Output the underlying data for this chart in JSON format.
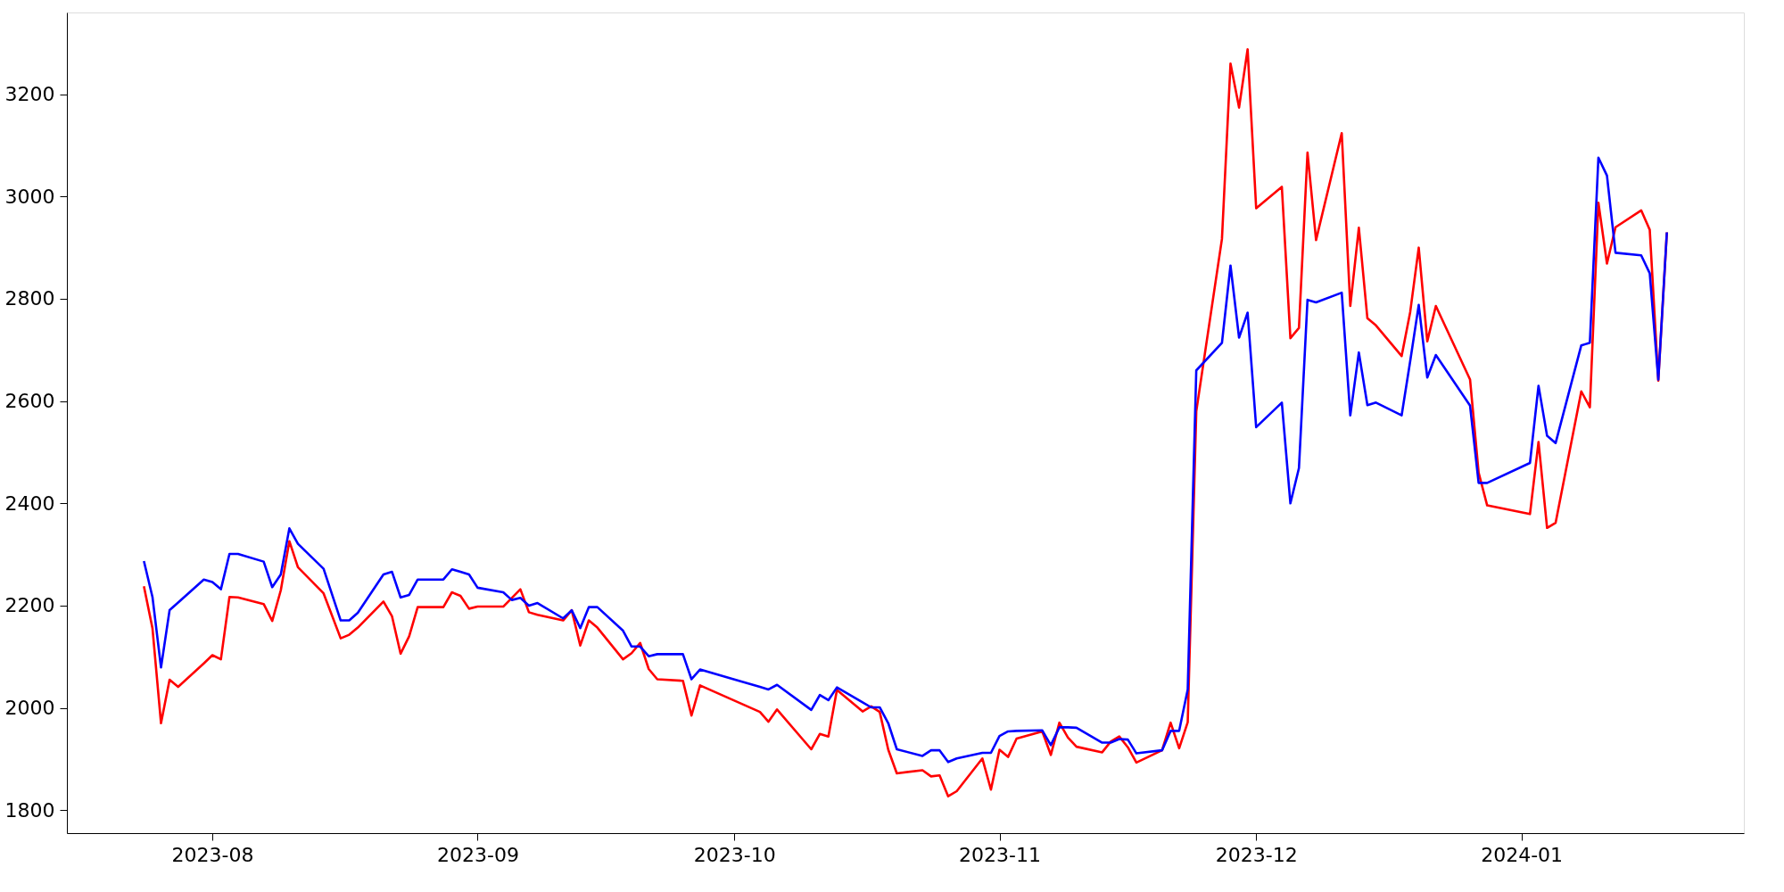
{
  "chart_data": {
    "type": "line",
    "x": [
      "2023-07-24",
      "2023-07-25",
      "2023-07-26",
      "2023-07-27",
      "2023-07-28",
      "2023-07-31",
      "2023-08-01",
      "2023-08-02",
      "2023-08-03",
      "2023-08-04",
      "2023-08-07",
      "2023-08-08",
      "2023-08-09",
      "2023-08-10",
      "2023-08-11",
      "2023-08-14",
      "2023-08-16",
      "2023-08-17",
      "2023-08-18",
      "2023-08-21",
      "2023-08-22",
      "2023-08-23",
      "2023-08-24",
      "2023-08-25",
      "2023-08-28",
      "2023-08-29",
      "2023-08-30",
      "2023-08-31",
      "2023-09-01",
      "2023-09-04",
      "2023-09-05",
      "2023-09-06",
      "2023-09-07",
      "2023-09-08",
      "2023-09-11",
      "2023-09-12",
      "2023-09-13",
      "2023-09-14",
      "2023-09-15",
      "2023-09-18",
      "2023-09-19",
      "2023-09-20",
      "2023-09-21",
      "2023-09-22",
      "2023-09-25",
      "2023-09-26",
      "2023-09-27",
      "2023-10-04",
      "2023-10-05",
      "2023-10-06",
      "2023-10-10",
      "2023-10-11",
      "2023-10-12",
      "2023-10-13",
      "2023-10-16",
      "2023-10-17",
      "2023-10-18",
      "2023-10-19",
      "2023-10-20",
      "2023-10-23",
      "2023-10-24",
      "2023-10-25",
      "2023-10-26",
      "2023-10-27",
      "2023-10-30",
      "2023-10-31",
      "2023-11-01",
      "2023-11-02",
      "2023-11-03",
      "2023-11-06",
      "2023-11-07",
      "2023-11-08",
      "2023-11-09",
      "2023-11-10",
      "2023-11-13",
      "2023-11-14",
      "2023-11-15",
      "2023-11-16",
      "2023-11-17",
      "2023-11-20",
      "2023-11-21",
      "2023-11-22",
      "2023-11-23",
      "2023-11-24",
      "2023-11-27",
      "2023-11-28",
      "2023-11-29",
      "2023-11-30",
      "2023-12-01",
      "2023-12-04",
      "2023-12-05",
      "2023-12-06",
      "2023-12-07",
      "2023-12-08",
      "2023-12-11",
      "2023-12-12",
      "2023-12-13",
      "2023-12-14",
      "2023-12-15",
      "2023-12-18",
      "2023-12-19",
      "2023-12-20",
      "2023-12-21",
      "2023-12-22",
      "2023-12-26",
      "2023-12-27",
      "2023-12-28",
      "2024-01-02",
      "2024-01-03",
      "2024-01-04",
      "2024-01-05",
      "2024-01-08",
      "2024-01-09",
      "2024-01-10",
      "2024-01-11",
      "2024-01-12",
      "2024-01-15",
      "2024-01-16",
      "2024-01-17",
      "2024-01-18"
    ],
    "series": [
      {
        "color": "#ff0000",
        "values": [
          2238,
          2156,
          1970,
          2055,
          2041,
          2087,
          2103,
          2095,
          2217,
          2216,
          2203,
          2170,
          2230,
          2326,
          2275,
          2224,
          2136,
          2143,
          2157,
          2208,
          2179,
          2106,
          2140,
          2197,
          2197,
          2226,
          2219,
          2194,
          2198,
          2198,
          2215,
          2232,
          2187,
          2182,
          2171,
          2191,
          2122,
          2171,
          2157,
          2095,
          2107,
          2127,
          2076,
          2056,
          2053,
          1985,
          2044,
          1992,
          1973,
          1997,
          1919,
          1949,
          1944,
          2035,
          1993,
          2003,
          1992,
          1918,
          1872,
          1878,
          1866,
          1868,
          1827,
          1837,
          1901,
          1840,
          1918,
          1904,
          1940,
          1954,
          1908,
          1971,
          1942,
          1924,
          1913,
          1934,
          1944,
          1923,
          1893,
          1917,
          1971,
          1921,
          1972,
          2580,
          2917,
          3260,
          3174,
          3288,
          2977,
          3019,
          2723,
          2743,
          3086,
          2915,
          3124,
          2786,
          2939,
          2762,
          2748,
          2688,
          2774,
          2900,
          2717,
          2786,
          2642,
          2460,
          2396,
          2379,
          2520,
          2352,
          2362,
          2619,
          2588,
          2988,
          2869,
          2940,
          2973,
          2935,
          2640,
          2930
        ]
      },
      {
        "color": "#0000ff",
        "values": [
          2287,
          2217,
          2079,
          2191,
          2206,
          2251,
          2246,
          2232,
          2301,
          2301,
          2286,
          2236,
          2261,
          2351,
          2321,
          2272,
          2171,
          2171,
          2186,
          2261,
          2266,
          2216,
          2221,
          2251,
          2251,
          2271,
          2266,
          2261,
          2235,
          2226,
          2211,
          2215,
          2200,
          2205,
          2175,
          2191,
          2156,
          2197,
          2197,
          2151,
          2120,
          2120,
          2101,
          2105,
          2105,
          2056,
          2075,
          2041,
          2036,
          2045,
          1996,
          2025,
          2015,
          2040,
          2011,
          2001,
          2001,
          1970,
          1919,
          1906,
          1917,
          1917,
          1894,
          1901,
          1912,
          1912,
          1945,
          1954,
          1955,
          1956,
          1927,
          1962,
          1962,
          1961,
          1932,
          1932,
          1939,
          1938,
          1911,
          1917,
          1955,
          1955,
          2036,
          2660,
          2714,
          2865,
          2724,
          2773,
          2549,
          2597,
          2400,
          2469,
          2798,
          2793,
          2812,
          2572,
          2695,
          2592,
          2597,
          2572,
          2678,
          2788,
          2646,
          2690,
          2591,
          2440,
          2440,
          2479,
          2630,
          2532,
          2518,
          2709,
          2714,
          3076,
          3041,
          2890,
          2885,
          2850,
          2642,
          2930
        ]
      }
    ],
    "xlim": [
      "2023-07-15",
      "2024-01-27"
    ],
    "xticks": [
      {
        "value": "2023-08-01",
        "label": "2023-08"
      },
      {
        "value": "2023-09-01",
        "label": "2023-09"
      },
      {
        "value": "2023-10-01",
        "label": "2023-10"
      },
      {
        "value": "2023-11-01",
        "label": "2023-11"
      },
      {
        "value": "2023-12-01",
        "label": "2023-12"
      },
      {
        "value": "2024-01-01",
        "label": "2024-01"
      }
    ],
    "ylim": [
      1755,
      3360
    ],
    "yticks": [
      1800,
      2000,
      2200,
      2400,
      2600,
      2800,
      3000,
      3200
    ],
    "grid": false,
    "line_style": "solid",
    "marker": "none"
  }
}
